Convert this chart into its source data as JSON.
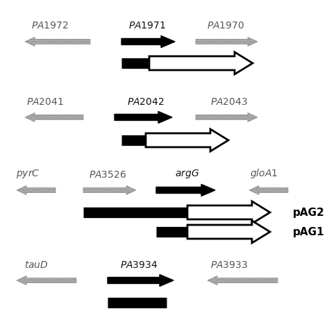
{
  "fig_width": 4.74,
  "fig_height": 4.74,
  "dpi": 100,
  "bg_color": "#ffffff"
}
